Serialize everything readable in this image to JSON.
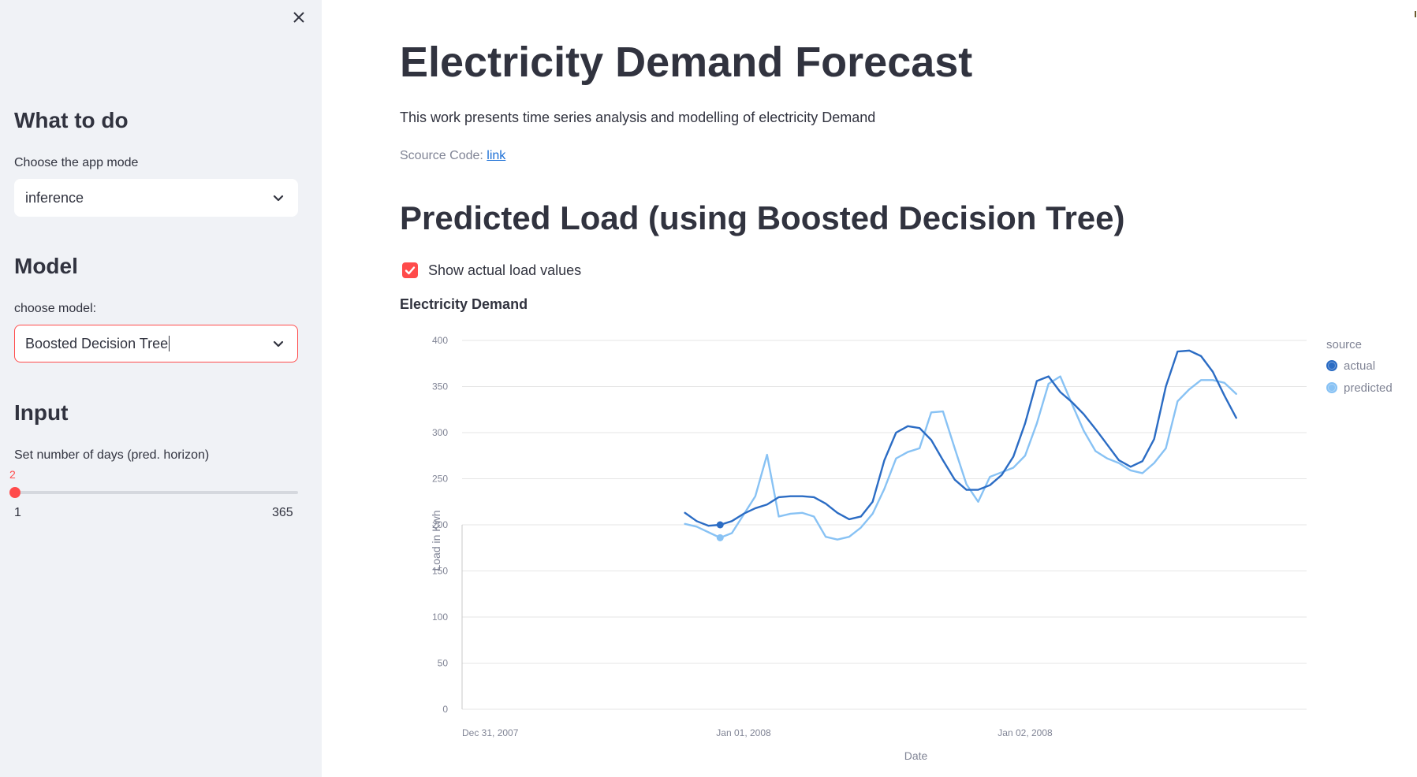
{
  "sidebar": {
    "close_icon": "close-icon",
    "sections": {
      "what_to_do": {
        "heading": "What to do",
        "label": "Choose the app mode",
        "value": "inference"
      },
      "model": {
        "heading": "Model",
        "label": "choose model:",
        "value": "Boosted Decision Tree"
      },
      "input": {
        "heading": "Input",
        "label": "Set number of days (pred. horizon)",
        "slider_value": "2",
        "slider_min": "1",
        "slider_max": "365"
      }
    },
    "accent_color": "#ff4b4b"
  },
  "main": {
    "title": "Electricity Demand Forecast",
    "description": "This work presents time series analysis and modelling of electricity Demand",
    "source_prefix": "Scource Code:",
    "source_link": "link",
    "subtitle": "Predicted Load (using Boosted Decision Tree)",
    "checkbox_label": "Show actual load values",
    "checkbox_checked": true,
    "chart_heading": "Electricity Demand"
  },
  "chart_data": {
    "type": "line",
    "title": "Electricity Demand",
    "xlabel": "Date",
    "ylabel": "Load in Kwh",
    "ylim": [
      0,
      400
    ],
    "yticks": [
      0,
      50,
      100,
      150,
      200,
      250,
      300,
      350,
      400
    ],
    "x_tick_labels": [
      "Dec 31, 2007",
      "Jan 01, 2008",
      "Jan 02, 2008"
    ],
    "x_unit": "hour",
    "x_start": "2007-12-31T00:00",
    "legend_title": "source",
    "legend_position": "right",
    "grid": true,
    "series": [
      {
        "name": "actual",
        "color": "#2b6cc4",
        "x": [
          19,
          20,
          21,
          22,
          23,
          24,
          25,
          26,
          27,
          28,
          29,
          30,
          31,
          32,
          33,
          34,
          35,
          36,
          37,
          38,
          39,
          40,
          41,
          42,
          43,
          44,
          45,
          46,
          47,
          48,
          49,
          50,
          51,
          52,
          53,
          54,
          55,
          56,
          57,
          58,
          59,
          60,
          61,
          62,
          63,
          64,
          65,
          66
        ],
        "values": [
          213,
          204,
          199,
          200,
          204,
          212,
          218,
          222,
          230,
          231,
          231,
          230,
          223,
          213,
          206,
          209,
          225,
          270,
          300,
          307,
          305,
          292,
          270,
          249,
          238,
          238,
          243,
          254,
          274,
          310,
          356,
          361,
          344,
          333,
          320,
          304,
          287,
          270,
          263,
          269,
          293,
          350,
          388,
          389,
          383,
          366,
          340,
          316
        ]
      },
      {
        "name": "predicted",
        "color": "#88c2f4",
        "x": [
          19,
          20,
          21,
          22,
          23,
          24,
          25,
          26,
          27,
          28,
          29,
          30,
          31,
          32,
          33,
          34,
          35,
          36,
          37,
          38,
          39,
          40,
          41,
          42,
          43,
          44,
          45,
          46,
          47,
          48,
          49,
          50,
          51,
          52,
          53,
          54,
          55,
          56,
          57,
          58,
          59,
          60,
          61,
          62,
          63,
          64,
          65,
          66
        ],
        "values": [
          201,
          198,
          192,
          186,
          191,
          211,
          231,
          276,
          209,
          212,
          213,
          209,
          187,
          184,
          187,
          197,
          212,
          239,
          272,
          279,
          283,
          322,
          323,
          283,
          244,
          225,
          252,
          257,
          262,
          275,
          310,
          353,
          361,
          331,
          302,
          280,
          272,
          267,
          259,
          256,
          267,
          283,
          334,
          347,
          357,
          357,
          354,
          342
        ]
      }
    ],
    "highlight_x": 22
  }
}
